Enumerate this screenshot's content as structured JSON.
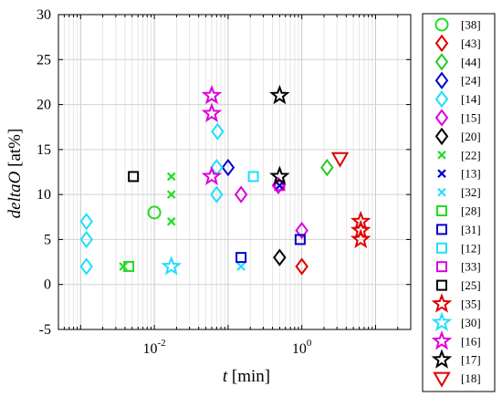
{
  "chart_data": {
    "type": "scatter",
    "x_scale": "log",
    "xlim": [
      0.0005,
      30
    ],
    "ylim": [
      -5,
      30
    ],
    "xlabel_var": "t",
    "xlabel_unit": "[min]",
    "ylabel_var": "deltaO",
    "ylabel_unit": "[at%]",
    "x_ticks": [
      {
        "value": 0.01,
        "base": "10",
        "exp": "-2"
      },
      {
        "value": 1,
        "base": "10",
        "exp": "0"
      }
    ],
    "y_ticks": [
      -5,
      0,
      5,
      10,
      15,
      20,
      25,
      30
    ],
    "grid": true,
    "legend_position": "outside-right",
    "series": [
      {
        "name": "[38]",
        "marker": "circle",
        "color": "#22dd22",
        "points": [
          [
            0.01,
            8
          ]
        ]
      },
      {
        "name": "[43]",
        "marker": "diamond",
        "color": "#dd0000",
        "points": [
          [
            1.0,
            2
          ]
        ]
      },
      {
        "name": "[44]",
        "marker": "diamond",
        "color": "#22cc22",
        "points": [
          [
            2.2,
            13
          ]
        ]
      },
      {
        "name": "[24]",
        "marker": "diamond",
        "color": "#0000cc",
        "points": [
          [
            0.1,
            13
          ]
        ]
      },
      {
        "name": "[14]",
        "marker": "diamond",
        "color": "#22ddff",
        "points": [
          [
            0.0012,
            7
          ],
          [
            0.0012,
            5
          ],
          [
            0.0012,
            2
          ],
          [
            0.072,
            17
          ],
          [
            0.07,
            13
          ],
          [
            0.07,
            10
          ]
        ]
      },
      {
        "name": "[15]",
        "marker": "diamond",
        "color": "#dd00dd",
        "points": [
          [
            0.15,
            10
          ],
          [
            1.0,
            6
          ],
          [
            0.48,
            11
          ]
        ]
      },
      {
        "name": "[20]",
        "marker": "diamond",
        "color": "#000000",
        "points": [
          [
            0.5,
            3
          ]
        ]
      },
      {
        "name": "[22]",
        "marker": "x",
        "color": "#22dd22",
        "points": [
          [
            0.017,
            12
          ],
          [
            0.017,
            10
          ],
          [
            0.017,
            7
          ],
          [
            0.0038,
            2
          ]
        ]
      },
      {
        "name": "[13]",
        "marker": "x",
        "color": "#0000cc",
        "points": [
          [
            0.5,
            11
          ]
        ]
      },
      {
        "name": "[32]",
        "marker": "x",
        "color": "#22ddff",
        "points": [
          [
            0.15,
            2
          ]
        ]
      },
      {
        "name": "[28]",
        "marker": "square",
        "color": "#22dd22",
        "points": [
          [
            0.0045,
            2
          ]
        ]
      },
      {
        "name": "[31]",
        "marker": "square",
        "color": "#0000cc",
        "points": [
          [
            0.15,
            3
          ],
          [
            0.95,
            5
          ]
        ]
      },
      {
        "name": "[12]",
        "marker": "square",
        "color": "#22ddff",
        "points": [
          [
            0.22,
            12
          ]
        ]
      },
      {
        "name": "[33]",
        "marker": "square",
        "color": "#dd00dd",
        "points": [
          [
            0.5,
            11
          ]
        ]
      },
      {
        "name": "[25]",
        "marker": "square",
        "color": "#000000",
        "points": [
          [
            0.0052,
            12
          ]
        ]
      },
      {
        "name": "[35]",
        "marker": "star",
        "color": "#dd0000",
        "points": [
          [
            6.3,
            7
          ],
          [
            6.3,
            6
          ],
          [
            6.3,
            5
          ]
        ]
      },
      {
        "name": "[30]",
        "marker": "star",
        "color": "#22ddff",
        "points": [
          [
            0.017,
            2
          ]
        ]
      },
      {
        "name": "[16]",
        "marker": "star",
        "color": "#dd00dd",
        "points": [
          [
            0.06,
            21
          ],
          [
            0.06,
            19
          ],
          [
            0.06,
            12
          ]
        ]
      },
      {
        "name": "[17]",
        "marker": "star",
        "color": "#000000",
        "points": [
          [
            0.5,
            21
          ],
          [
            0.5,
            12
          ]
        ]
      },
      {
        "name": "[18]",
        "marker": "triangle-down",
        "color": "#dd0000",
        "points": [
          [
            3.3,
            14
          ]
        ]
      }
    ]
  }
}
